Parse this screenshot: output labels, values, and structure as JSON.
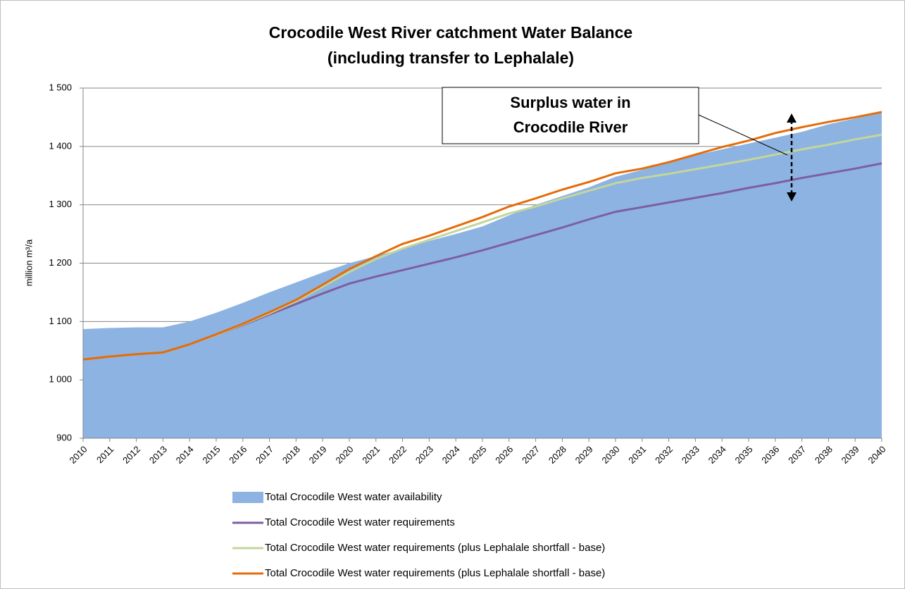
{
  "chart_data": {
    "type": "line",
    "title": [
      "Crocodile West River catchment Water Balance",
      "(including transfer to Lephalale)"
    ],
    "y_label": "million m³/a",
    "annotation": [
      "Surplus water in",
      "Crocodile River"
    ],
    "categories": [
      "2010",
      "2011",
      "2012",
      "2013",
      "2014",
      "2015",
      "2016",
      "2017",
      "2018",
      "2019",
      "2020",
      "2021",
      "2022",
      "2023",
      "2024",
      "2025",
      "2026",
      "2027",
      "2028",
      "2029",
      "2030",
      "2031",
      "2032",
      "2033",
      "2034",
      "2035",
      "2036",
      "2037",
      "2038",
      "2039",
      "2040"
    ],
    "ylim": [
      900,
      1500
    ],
    "yticks": [
      900,
      {
        "value": 1000,
        "label": "1 000"
      },
      {
        "value": 1100,
        "label": "1 100"
      },
      {
        "value": 1200,
        "label": "1 200"
      },
      {
        "value": 1300,
        "label": "1 300"
      },
      {
        "value": 1400,
        "label": "1 400"
      },
      {
        "value": 1500,
        "label": "1 500"
      }
    ],
    "grid": true,
    "legend": "bottom",
    "series": [
      {
        "name": "Total Crocodile West water availability",
        "style": "area",
        "color": "#8db3e2",
        "values": [
          1087,
          1089,
          1090,
          1090,
          1100,
          1115,
          1132,
          1150,
          1167,
          1184,
          1200,
          1212,
          1225,
          1238,
          1250,
          1263,
          1282,
          1300,
          1315,
          1330,
          1348,
          1360,
          1372,
          1385,
          1395,
          1405,
          1415,
          1425,
          1438,
          1448,
          1458
        ]
      },
      {
        "name": "Total Crocodile West water requirements",
        "style": "line",
        "color": "#7d5fa0",
        "values": [
          1035,
          1040,
          1044,
          1047,
          1061,
          1077,
          1094,
          1112,
          1130,
          1148,
          1165,
          1177,
          1188,
          1199,
          1210,
          1222,
          1235,
          1248,
          1261,
          1275,
          1288,
          1296,
          1304,
          1312,
          1320,
          1329,
          1337,
          1346,
          1354,
          1362,
          1371
        ]
      },
      {
        "name": "Total Crocodile West water requirements (plus Lephalale shortfall - base)",
        "style": "line",
        "color": "#c3d69b",
        "values": [
          1035,
          1040,
          1044,
          1047,
          1061,
          1077,
          1095,
          1114,
          1135,
          1160,
          1185,
          1207,
          1225,
          1240,
          1255,
          1270,
          1285,
          1297,
          1311,
          1324,
          1337,
          1346,
          1353,
          1361,
          1369,
          1377,
          1386,
          1395,
          1403,
          1412,
          1420
        ]
      },
      {
        "name": "Total Crocodile West water requirements (plus Lephalale shortfall - base)",
        "style": "line",
        "color": "#e46c0a",
        "values": [
          1035,
          1040,
          1044,
          1047,
          1061,
          1078,
          1096,
          1116,
          1137,
          1163,
          1190,
          1212,
          1233,
          1247,
          1263,
          1279,
          1297,
          1311,
          1326,
          1339,
          1354,
          1362,
          1373,
          1386,
          1399,
          1410,
          1423,
          1433,
          1442,
          1450,
          1459
        ]
      }
    ]
  }
}
